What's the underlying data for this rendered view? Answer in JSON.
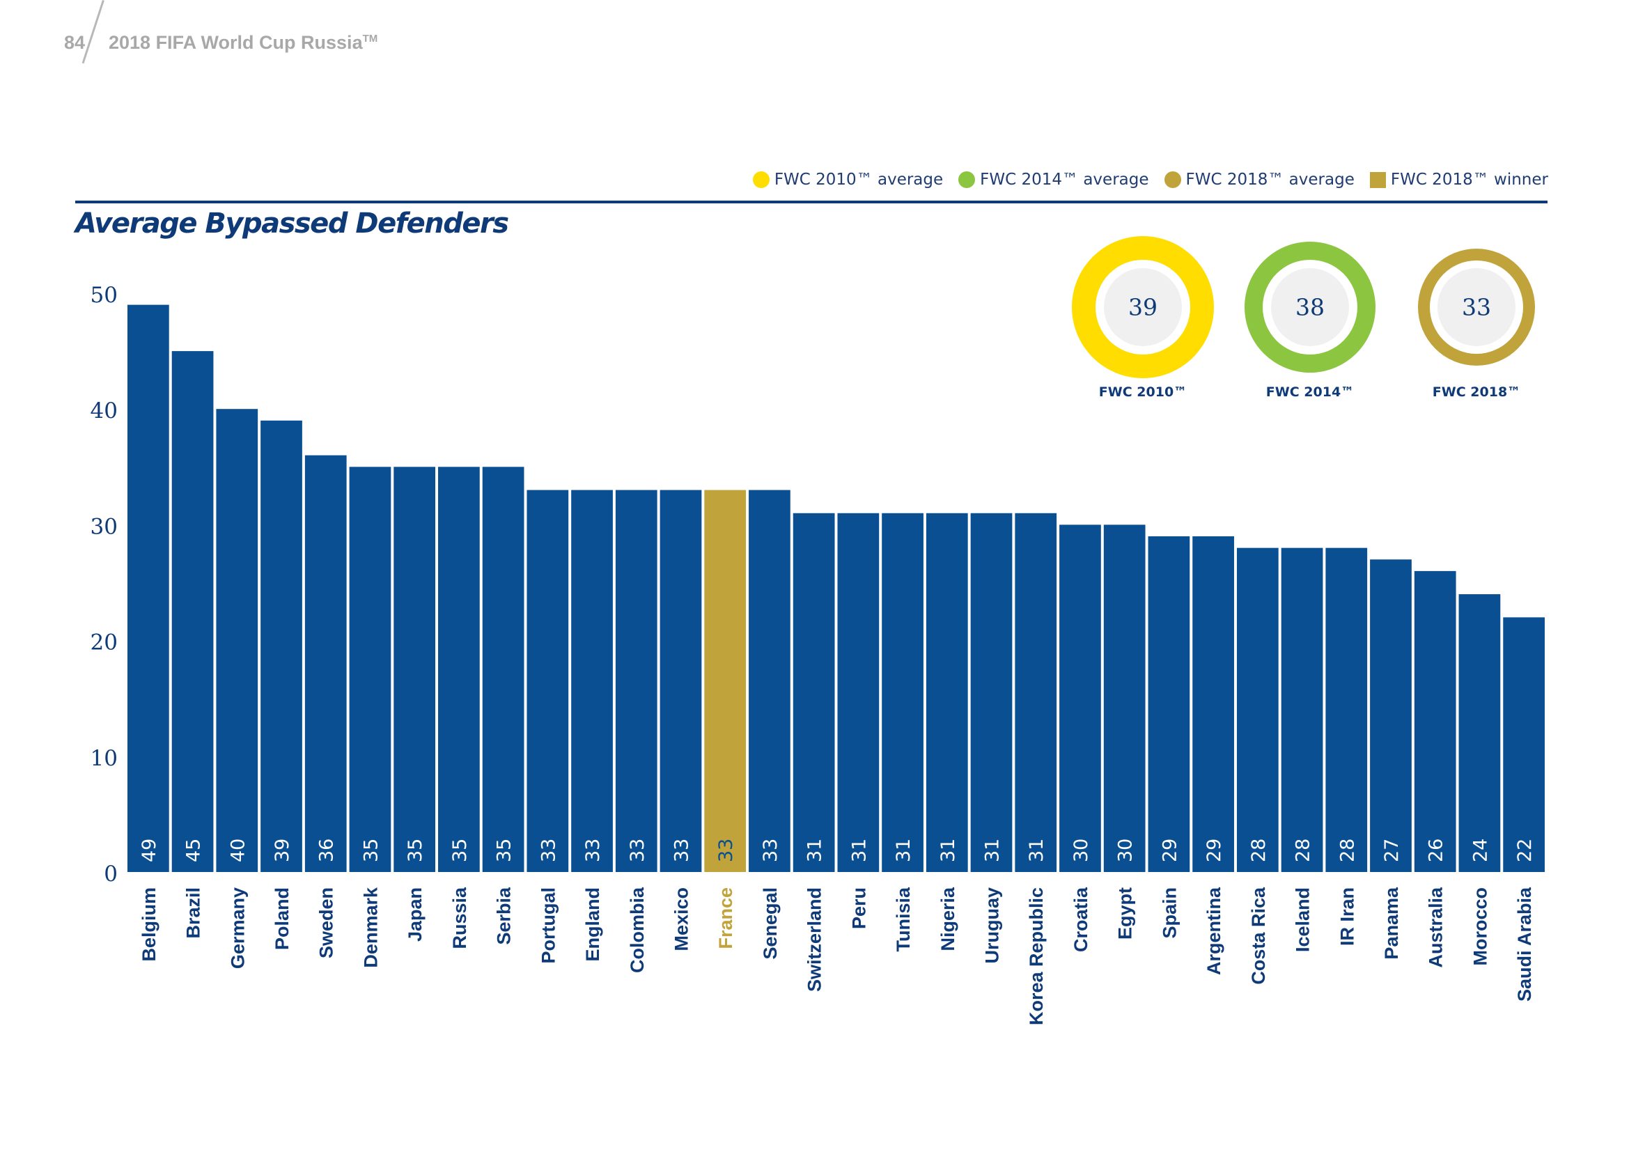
{
  "header": {
    "page_number": "84",
    "publication_title": "2018 FIFA World Cup Russia",
    "publication_title_mark": "TM"
  },
  "legend": [
    {
      "label": "FWC 2010™ average",
      "color": "#ffdd00",
      "shape": "circle"
    },
    {
      "label": "FWC 2014™ average",
      "color": "#8cc540",
      "shape": "circle"
    },
    {
      "label": "FWC 2018™ average",
      "color": "#c1a33b",
      "shape": "circle"
    },
    {
      "label": "FWC 2018™ winner",
      "color": "#c1a33b",
      "shape": "square"
    }
  ],
  "averages": [
    {
      "value": "39",
      "label": "FWC 2010™",
      "color": "#ffdd00"
    },
    {
      "value": "38",
      "label": "FWC 2014™",
      "color": "#8cc540"
    },
    {
      "value": "33",
      "label": "FWC 2018™",
      "color": "#c1a33b"
    }
  ],
  "colors": {
    "bar": "#0a4f91",
    "winner": "#c1a33b",
    "axis_text": "#0e3a78",
    "rule": "#0e3a78"
  },
  "chart_data": {
    "type": "bar",
    "title": "Average Bypassed Defenders",
    "xlabel": "",
    "ylabel": "",
    "ylim": [
      0,
      50
    ],
    "yticks": [
      0,
      10,
      20,
      30,
      40,
      50
    ],
    "grid": false,
    "legend_position": "top-right",
    "highlight_category": "France",
    "categories": [
      "Belgium",
      "Brazil",
      "Germany",
      "Poland",
      "Sweden",
      "Denmark",
      "Japan",
      "Russia",
      "Serbia",
      "Portugal",
      "England",
      "Colombia",
      "Mexico",
      "France",
      "Senegal",
      "Switzerland",
      "Peru",
      "Tunisia",
      "Nigeria",
      "Uruguay",
      "Korea Republic",
      "Croatia",
      "Egypt",
      "Spain",
      "Argentina",
      "Costa Rica",
      "Iceland",
      "IR Iran",
      "Panama",
      "Australia",
      "Morocco",
      "Saudi Arabia"
    ],
    "values": [
      49,
      45,
      40,
      39,
      36,
      35,
      35,
      35,
      35,
      33,
      33,
      33,
      33,
      33,
      33,
      31,
      31,
      31,
      31,
      31,
      31,
      30,
      30,
      29,
      29,
      28,
      28,
      28,
      27,
      26,
      24,
      22
    ]
  }
}
